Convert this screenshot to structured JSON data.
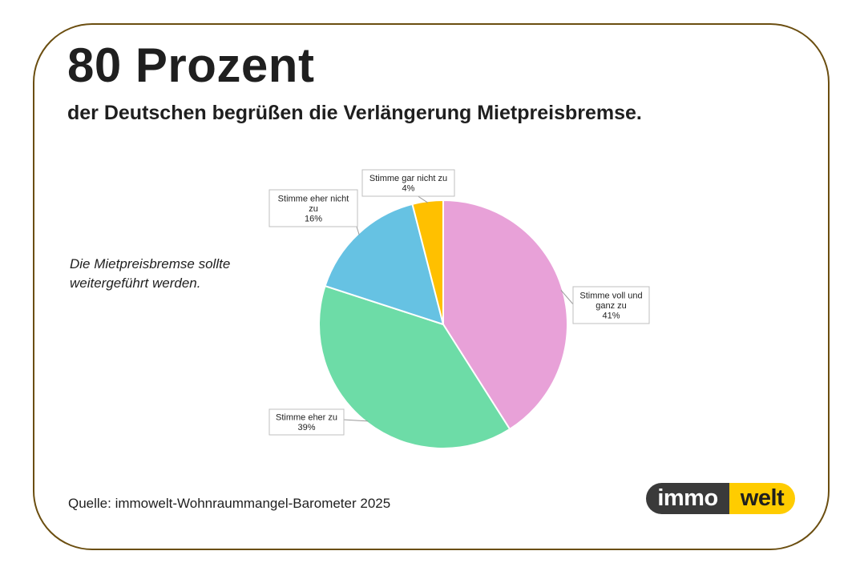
{
  "header": {
    "headline": "80 Prozent",
    "subheadline": "der Deutschen begrüßen die Verlängerung Mietpreisbremse."
  },
  "note": "Die Mietpreisbremse sollte weitergeführt werden.",
  "source": "Quelle: immowelt-Wohnraummangel-Barometer 2025",
  "logo": {
    "part1": "immo",
    "part2": "welt"
  },
  "colors": {
    "frame": "#6b4e10",
    "logo_dark": "#3a3a3a",
    "logo_yellow": "#ffcc00"
  },
  "chart_data": {
    "type": "pie",
    "title": "",
    "start_angle_deg": 0,
    "direction": "clockwise",
    "slices": [
      {
        "label": "Stimme voll und ganz zu",
        "label_lines": [
          "Stimme voll und",
          "ganz zu"
        ],
        "value": 41,
        "value_label": "41%",
        "color": "#e8a1d8"
      },
      {
        "label": "Stimme eher zu",
        "label_lines": [
          "Stimme eher zu"
        ],
        "value": 39,
        "value_label": "39%",
        "color": "#6ddca7"
      },
      {
        "label": "Stimme eher nicht zu",
        "label_lines": [
          "Stimme eher nicht",
          "zu"
        ],
        "value": 16,
        "value_label": "16%",
        "color": "#66c2e3"
      },
      {
        "label": "Stimme gar nicht zu",
        "label_lines": [
          "Stimme gar nicht zu"
        ],
        "value": 4,
        "value_label": "4%",
        "color": "#ffc000"
      }
    ]
  }
}
